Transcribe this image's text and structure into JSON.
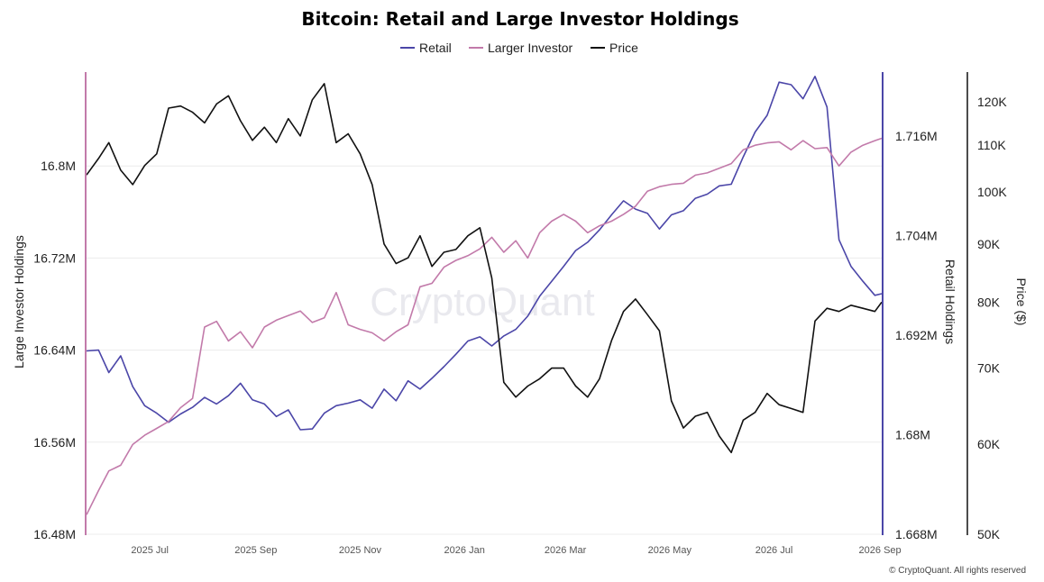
{
  "chart_data": {
    "type": "line",
    "title": "Bitcoin: Retail and Large Investor Holdings",
    "watermark": "CryptoQuant",
    "copyright": "© CryptoQuant. All rights reserved",
    "x_ticks": [
      "2025 Jul",
      "2025 Sep",
      "2025 Nov",
      "2026 Jan",
      "2026 Mar",
      "2026 May",
      "2026 Jul",
      "2026 Sep"
    ],
    "x_start": "2025-05-25",
    "x_end": "2026-09-02",
    "legend_position": "top-center",
    "grid": true,
    "axes": {
      "left": {
        "label": "Large Investor Holdings",
        "range": [
          16.48,
          16.88
        ],
        "ticks": [
          16.48,
          16.56,
          16.64,
          16.72,
          16.8
        ],
        "tick_labels": [
          "16.48M",
          "16.56M",
          "16.64M",
          "16.72M",
          "16.8M"
        ],
        "unit": "M BTC"
      },
      "right": {
        "label": "Retail Holdings",
        "range": [
          1.668,
          1.7235
        ],
        "ticks": [
          1.668,
          1.68,
          1.692,
          1.704,
          1.716
        ],
        "tick_labels": [
          "1.668M",
          "1.68M",
          "1.692M",
          "1.704M",
          "1.716M"
        ],
        "unit": "M BTC"
      },
      "price": {
        "label": "Price ($)",
        "scale": "log",
        "range": [
          50000,
          127000
        ],
        "ticks": [
          50000,
          60000,
          70000,
          80000,
          90000,
          100000,
          110000,
          120000
        ],
        "tick_labels": [
          "50K",
          "60K",
          "70K",
          "80K",
          "90K",
          "100K",
          "110K",
          "120K"
        ]
      }
    },
    "series": [
      {
        "name": "Retail",
        "color": "#4b46a8",
        "axis": "right",
        "x": [
          "2025-05-25",
          "2025-06-01",
          "2025-06-07",
          "2025-06-14",
          "2025-06-21",
          "2025-06-28",
          "2025-07-05",
          "2025-07-12",
          "2025-07-19",
          "2025-07-26",
          "2025-08-02",
          "2025-08-09",
          "2025-08-16",
          "2025-08-23",
          "2025-08-30",
          "2025-09-06",
          "2025-09-13",
          "2025-09-20",
          "2025-09-27",
          "2025-10-04",
          "2025-10-11",
          "2025-10-18",
          "2025-10-25",
          "2025-11-01",
          "2025-11-08",
          "2025-11-15",
          "2025-11-22",
          "2025-11-29",
          "2025-12-06",
          "2025-12-13",
          "2025-12-20",
          "2025-12-27",
          "2026-01-03",
          "2026-01-10",
          "2026-01-17",
          "2026-01-24",
          "2026-01-31",
          "2026-02-07",
          "2026-02-14",
          "2026-02-21",
          "2026-02-28",
          "2026-03-07",
          "2026-03-14",
          "2026-03-21",
          "2026-03-28",
          "2026-04-04",
          "2026-04-11",
          "2026-04-18",
          "2026-04-25",
          "2026-05-02",
          "2026-05-09",
          "2026-05-16",
          "2026-05-23",
          "2026-05-30",
          "2026-06-06",
          "2026-06-13",
          "2026-06-20",
          "2026-06-27",
          "2026-07-04",
          "2026-07-11",
          "2026-07-18",
          "2026-07-25",
          "2026-08-01",
          "2026-08-08",
          "2026-08-15",
          "2026-08-22",
          "2026-08-29",
          "2026-09-02"
        ],
        "y": [
          1.6901,
          1.6902,
          1.6875,
          1.6895,
          1.6858,
          1.6835,
          1.6826,
          1.6815,
          1.6825,
          1.6833,
          1.6845,
          1.6837,
          1.6847,
          1.6862,
          1.6842,
          1.6837,
          1.6822,
          1.683,
          1.6806,
          1.6807,
          1.6826,
          1.6835,
          1.6838,
          1.6842,
          1.6832,
          1.6855,
          1.6841,
          1.6865,
          1.6855,
          1.6868,
          1.6882,
          1.6897,
          1.6913,
          1.6918,
          1.6907,
          1.6919,
          1.6927,
          1.6943,
          1.6967,
          1.6985,
          1.7003,
          1.7022,
          1.7032,
          1.7047,
          1.7065,
          1.7082,
          1.7072,
          1.7067,
          1.7048,
          1.7065,
          1.707,
          1.7085,
          1.709,
          1.71,
          1.7102,
          1.7135,
          1.7165,
          1.7185,
          1.7225,
          1.7222,
          1.7205,
          1.7232,
          1.7195,
          1.7035,
          1.7003,
          1.6985,
          1.6968,
          1.697
        ]
      },
      {
        "name": "Larger Investor",
        "color": "#c27aaa",
        "axis": "left",
        "x": [
          "2025-05-25",
          "2025-06-01",
          "2025-06-07",
          "2025-06-14",
          "2025-06-21",
          "2025-06-28",
          "2025-07-05",
          "2025-07-12",
          "2025-07-19",
          "2025-07-26",
          "2025-08-02",
          "2025-08-09",
          "2025-08-16",
          "2025-08-23",
          "2025-08-30",
          "2025-09-06",
          "2025-09-13",
          "2025-09-20",
          "2025-09-27",
          "2025-10-04",
          "2025-10-11",
          "2025-10-18",
          "2025-10-25",
          "2025-11-01",
          "2025-11-08",
          "2025-11-15",
          "2025-11-22",
          "2025-11-29",
          "2025-12-06",
          "2025-12-13",
          "2025-12-20",
          "2025-12-27",
          "2026-01-03",
          "2026-01-10",
          "2026-01-17",
          "2026-01-24",
          "2026-01-31",
          "2026-02-07",
          "2026-02-14",
          "2026-02-21",
          "2026-02-28",
          "2026-03-07",
          "2026-03-14",
          "2026-03-21",
          "2026-03-28",
          "2026-04-04",
          "2026-04-11",
          "2026-04-18",
          "2026-04-25",
          "2026-05-02",
          "2026-05-09",
          "2026-05-16",
          "2026-05-23",
          "2026-05-30",
          "2026-06-06",
          "2026-06-13",
          "2026-06-20",
          "2026-06-27",
          "2026-07-04",
          "2026-07-11",
          "2026-07-18",
          "2026-07-25",
          "2026-08-01",
          "2026-08-08",
          "2026-08-15",
          "2026-08-22",
          "2026-08-29",
          "2026-09-02"
        ],
        "y": [
          16.497,
          16.518,
          16.535,
          16.54,
          16.558,
          16.566,
          16.572,
          16.578,
          16.59,
          16.598,
          16.66,
          16.665,
          16.648,
          16.656,
          16.642,
          16.66,
          16.666,
          16.67,
          16.674,
          16.664,
          16.668,
          16.69,
          16.662,
          16.658,
          16.655,
          16.648,
          16.656,
          16.662,
          16.695,
          16.698,
          16.712,
          16.718,
          16.722,
          16.728,
          16.738,
          16.725,
          16.735,
          16.72,
          16.742,
          16.752,
          16.758,
          16.752,
          16.742,
          16.748,
          16.752,
          16.758,
          16.765,
          16.778,
          16.782,
          16.784,
          16.785,
          16.792,
          16.794,
          16.798,
          16.802,
          16.814,
          16.818,
          16.82,
          16.821,
          16.814,
          16.822,
          16.815,
          16.816,
          16.8,
          16.812,
          16.818,
          16.822,
          16.824
        ]
      },
      {
        "name": "Price",
        "color": "#111111",
        "axis": "price",
        "x": [
          "2025-05-25",
          "2025-06-01",
          "2025-06-07",
          "2025-06-14",
          "2025-06-21",
          "2025-06-28",
          "2025-07-05",
          "2025-07-12",
          "2025-07-19",
          "2025-07-26",
          "2025-08-02",
          "2025-08-09",
          "2025-08-16",
          "2025-08-23",
          "2025-08-30",
          "2025-09-06",
          "2025-09-13",
          "2025-09-20",
          "2025-09-27",
          "2025-10-04",
          "2025-10-11",
          "2025-10-18",
          "2025-10-25",
          "2025-11-01",
          "2025-11-08",
          "2025-11-15",
          "2025-11-22",
          "2025-11-29",
          "2025-12-06",
          "2025-12-13",
          "2025-12-20",
          "2025-12-27",
          "2026-01-03",
          "2026-01-10",
          "2026-01-17",
          "2026-01-24",
          "2026-01-31",
          "2026-02-07",
          "2026-02-14",
          "2026-02-21",
          "2026-02-28",
          "2026-03-07",
          "2026-03-14",
          "2026-03-21",
          "2026-03-28",
          "2026-04-04",
          "2026-04-11",
          "2026-04-18",
          "2026-04-25",
          "2026-05-02",
          "2026-05-09",
          "2026-05-16",
          "2026-05-23",
          "2026-05-30",
          "2026-06-06",
          "2026-06-13",
          "2026-06-20",
          "2026-06-27",
          "2026-07-04",
          "2026-07-11",
          "2026-07-18",
          "2026-07-25",
          "2026-08-01",
          "2026-08-08",
          "2026-08-15",
          "2026-08-22",
          "2026-08-29",
          "2026-09-02"
        ],
        "y": [
          103500,
          107000,
          110500,
          104500,
          101500,
          105500,
          108000,
          118500,
          119000,
          117500,
          115000,
          119500,
          121500,
          115500,
          111000,
          114000,
          110500,
          116000,
          112000,
          120500,
          124500,
          110500,
          112500,
          108000,
          101500,
          90000,
          86500,
          87500,
          91500,
          86000,
          88500,
          89000,
          91500,
          93000,
          84000,
          68000,
          66000,
          67500,
          68500,
          70000,
          70000,
          67500,
          66000,
          68500,
          74000,
          78500,
          80500,
          78000,
          75500,
          65500,
          62000,
          63500,
          64000,
          61000,
          59000,
          63000,
          64000,
          66500,
          65000,
          64500,
          64000,
          77000,
          79000,
          78500,
          79500,
          79000,
          78500,
          80000
        ]
      }
    ]
  }
}
